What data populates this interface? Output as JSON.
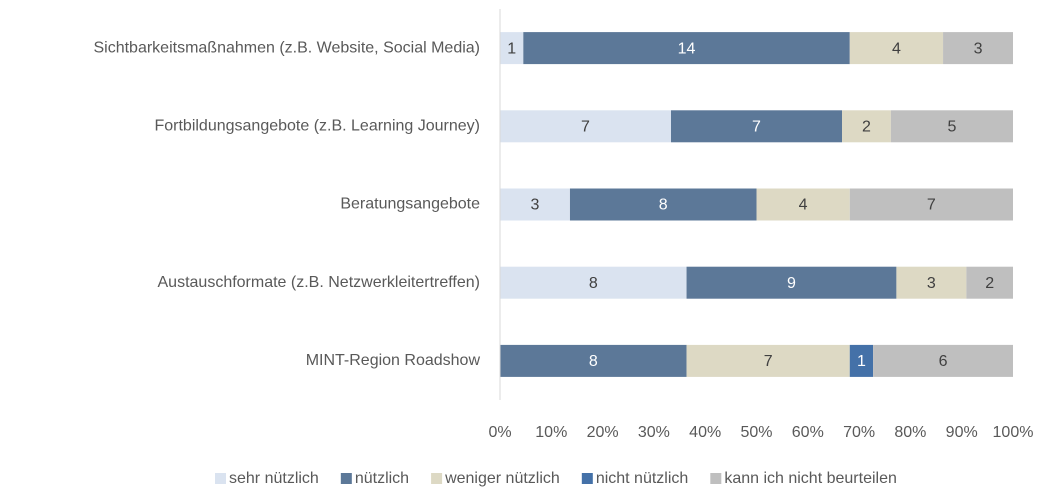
{
  "chart_data": {
    "type": "bar",
    "orientation": "horizontal",
    "stacked": "percent",
    "categories": [
      "Sichtbarkeitsmaßnahmen (z.B. Website, Social Media)",
      "Fortbildungsangebote (z.B. Learning Journey)",
      "Beratungsangebote",
      "Austauschformate (z.B. Netzwerkleitertreffen)",
      "MINT-Region Roadshow"
    ],
    "series": [
      {
        "name": "sehr nützlich",
        "color": "#dae3f0",
        "values": [
          1,
          7,
          3,
          8,
          0
        ]
      },
      {
        "name": "nützlich",
        "color": "#5c7898",
        "values": [
          14,
          7,
          8,
          9,
          8
        ]
      },
      {
        "name": "weniger nützlich",
        "color": "#ddd9c4",
        "values": [
          4,
          2,
          4,
          3,
          7
        ]
      },
      {
        "name": "nicht nützlich",
        "color": "#4471a8",
        "values": [
          0,
          0,
          0,
          0,
          1
        ]
      },
      {
        "name": "kann ich nicht beurteilen",
        "color": "#bfbfbf",
        "values": [
          3,
          5,
          7,
          2,
          6
        ]
      }
    ],
    "xlim": [
      0,
      100
    ],
    "xticks": [
      {
        "value": 0,
        "label": "0%"
      },
      {
        "value": 10,
        "label": "10%"
      },
      {
        "value": 20,
        "label": "20%"
      },
      {
        "value": 30,
        "label": "30%"
      },
      {
        "value": 40,
        "label": "40%"
      },
      {
        "value": 50,
        "label": "50%"
      },
      {
        "value": 60,
        "label": "60%"
      },
      {
        "value": 70,
        "label": "70%"
      },
      {
        "value": 80,
        "label": "80%"
      },
      {
        "value": 90,
        "label": "90%"
      },
      {
        "value": 100,
        "label": "100%"
      }
    ],
    "legend": "bottom"
  }
}
